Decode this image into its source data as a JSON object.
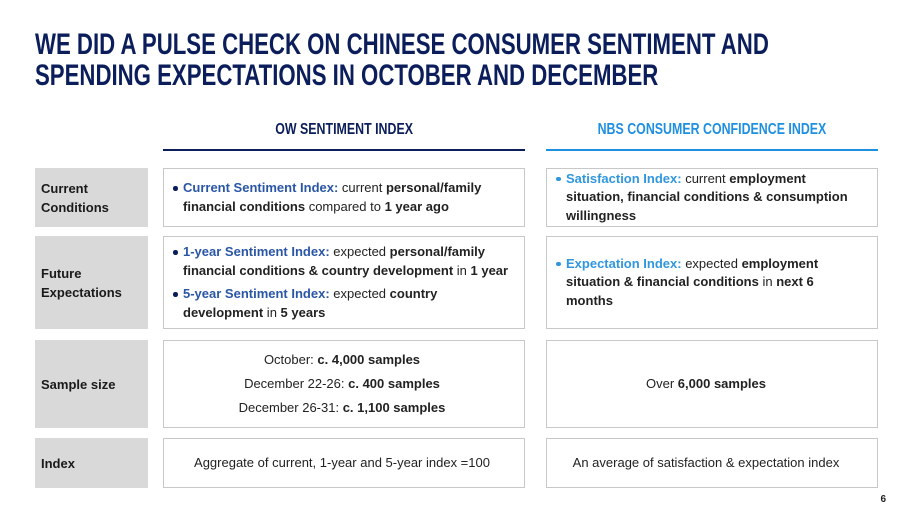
{
  "title": "WE DID A PULSE CHECK ON CHINESE CONSUMER SENTIMENT AND SPENDING EXPECTATIONS IN OCTOBER AND DECEMBER",
  "colors": {
    "title": "#0b1e5b",
    "ow_header": "#0b1e5b",
    "ow_key": "#2a56a6",
    "nbs_header": "#1f8fe0",
    "nbs_key": "#3097de",
    "label_fill": "#d9d9d9",
    "cell_border": "#c8c8c8",
    "text": "#222222"
  },
  "columns": {
    "ow": "OW SENTIMENT INDEX",
    "nbs": "NBS CONSUMER CONFIDENCE INDEX"
  },
  "rows": {
    "current": {
      "label": "Current Conditions",
      "ow": [
        {
          "key": "Current Sentiment Index:",
          "parts": [
            " current ",
            "personal/family financial conditions",
            " compared to ",
            "1 year ago"
          ]
        }
      ],
      "nbs": [
        {
          "key": "Satisfaction Index:",
          "parts": [
            " current ",
            "employment situation, financial conditions & consumption willingness"
          ]
        }
      ]
    },
    "future": {
      "label": "Future Expectations",
      "ow": [
        {
          "key": "1-year Sentiment Index:",
          "parts": [
            " expected ",
            "personal/family financial conditions & country development",
            " in ",
            "1 year"
          ]
        },
        {
          "key": "5-year Sentiment Index:",
          "parts": [
            " expected ",
            "country development",
            " in ",
            "5 years"
          ]
        }
      ],
      "nbs": [
        {
          "key": "Expectation Index:",
          "parts": [
            " expected ",
            "employment situation & financial conditions",
            " in ",
            "next 6 months"
          ]
        }
      ]
    },
    "sample": {
      "label": "Sample size",
      "ow": [
        {
          "prefix": "October: ",
          "value": "c. 4,000 samples"
        },
        {
          "prefix": "December 22-26: ",
          "value": "c. 400 samples"
        },
        {
          "prefix": "December 26-31: ",
          "value": "c. 1,100 samples"
        }
      ],
      "nbs": [
        {
          "prefix": "Over ",
          "value": "6,000 samples"
        }
      ]
    },
    "index": {
      "label": "Index",
      "ow": "Aggregate of current, 1-year and 5-year index =100",
      "nbs": "An average of satisfaction & expectation index"
    }
  },
  "page_number": "6"
}
